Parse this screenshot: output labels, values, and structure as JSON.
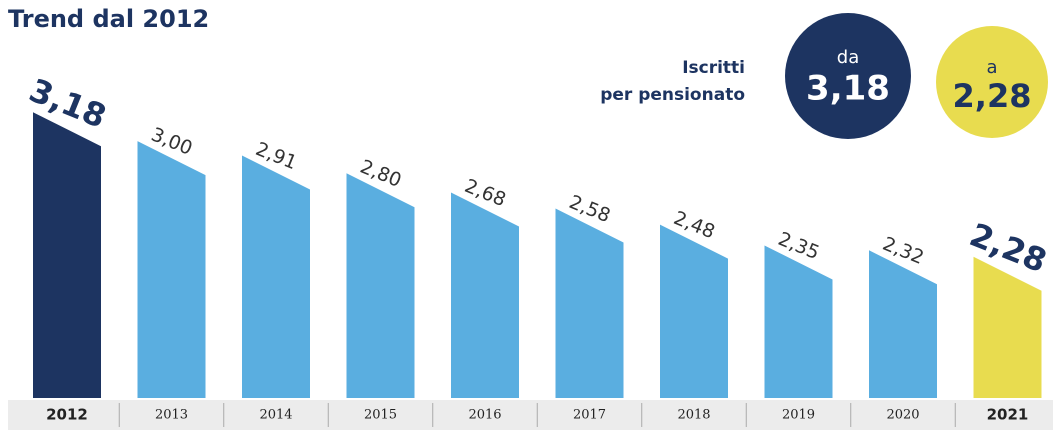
{
  "chart_data": {
    "type": "bar",
    "title": "Trend dal 2012",
    "annotation": [
      "Iscritti",
      "per pensionato"
    ],
    "from_word": "da",
    "to_word": "a",
    "categories": [
      "2012",
      "2013",
      "2014",
      "2015",
      "2016",
      "2017",
      "2018",
      "2019",
      "2020",
      "2021"
    ],
    "values": [
      3.18,
      3.0,
      2.91,
      2.8,
      2.68,
      2.58,
      2.48,
      2.35,
      2.32,
      2.28
    ],
    "value_labels": [
      "3,18",
      "3,00",
      "2,91",
      "2,80",
      "2,68",
      "2,58",
      "2,48",
      "2,35",
      "2,32",
      "2,28"
    ],
    "colors": [
      "#1d3461",
      "#5aaee0",
      "#5aaee0",
      "#5aaee0",
      "#5aaee0",
      "#5aaee0",
      "#5aaee0",
      "#5aaee0",
      "#5aaee0",
      "#e8dc4f"
    ],
    "ylim": [
      1.4,
      3.2
    ]
  }
}
